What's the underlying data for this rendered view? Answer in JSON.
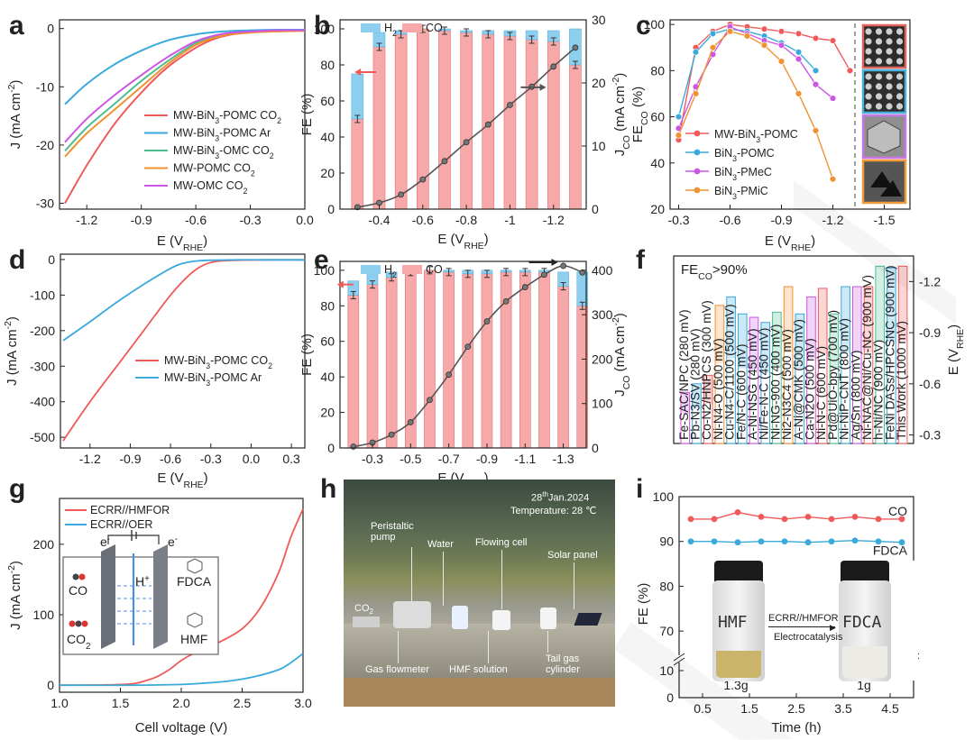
{
  "panel_labels": [
    "a",
    "b",
    "c",
    "d",
    "e",
    "f",
    "g",
    "h",
    "i"
  ],
  "colors": {
    "red": "#f05a5a",
    "blue": "#3aa9dc",
    "green": "#4dbf8f",
    "orange": "#f0922f",
    "purple": "#cc55e6",
    "grey": "#555555",
    "barred": "#f7a9a9",
    "barblue": "#8ecff0"
  },
  "chart_data": [
    {
      "panel": "a",
      "type": "line",
      "xlabel": "E (V",
      "xlabel_sub": "RHE",
      "xlabel_end": ")",
      "ylabel": "J (mA cm",
      "ylabel_sup": "-2",
      "ylabel_end": ")",
      "xlim": [
        -1.35,
        0.0
      ],
      "ylim": [
        -31,
        1.5
      ],
      "xticks": [
        "-1.2",
        "-0.9",
        "-0.6",
        "-0.3",
        "0.0"
      ],
      "xtick_values": [
        -1.2,
        -0.9,
        -0.6,
        -0.3,
        0.0
      ],
      "yticks": [
        "0",
        "-10",
        "-20",
        "-30"
      ],
      "ytick_values": [
        0,
        -10,
        -20,
        -30
      ],
      "series": [
        {
          "name": "MW-BiN3-POMC CO2",
          "legend": [
            "MW-BiN",
            "3",
            "-POMC CO",
            "2"
          ],
          "color": "red",
          "x": [
            -1.32,
            -1.2,
            -1.05,
            -0.9,
            -0.75,
            -0.6,
            -0.5,
            -0.4,
            -0.3,
            -0.2,
            0.0
          ],
          "y": [
            -30,
            -23.5,
            -16.5,
            -11,
            -6.5,
            -3.3,
            -1.8,
            -1.0,
            -0.6,
            -0.4,
            -0.3
          ]
        },
        {
          "name": "MW-BiN3-POMC Ar",
          "legend": [
            "MW-BiN",
            "3",
            "-POMC Ar",
            ""
          ],
          "color": "blue",
          "x": [
            -1.32,
            -1.2,
            -1.05,
            -0.9,
            -0.75,
            -0.6,
            -0.45,
            -0.3,
            -0.15,
            0.0
          ],
          "y": [
            -13,
            -9.5,
            -6.2,
            -3.8,
            -2.0,
            -1.0,
            -0.5,
            -0.3,
            -0.2,
            -0.2
          ]
        },
        {
          "name": "MW-BiN3-OMC CO2",
          "legend": [
            "MW-BiN",
            "3",
            "-OMC CO",
            "2"
          ],
          "color": "green",
          "x": [
            -1.32,
            -1.2,
            -1.05,
            -0.9,
            -0.75,
            -0.6,
            -0.45,
            -0.3,
            -0.15,
            0.0
          ],
          "y": [
            -21,
            -17,
            -13,
            -9,
            -5.5,
            -2.5,
            -1.0,
            -0.6,
            -0.4,
            -0.3
          ]
        },
        {
          "name": "MW-POMC CO2",
          "legend": [
            "MW-POMC CO",
            "2",
            "",
            ""
          ],
          "color": "orange",
          "x": [
            -1.32,
            -1.2,
            -1.05,
            -0.9,
            -0.75,
            -0.6,
            -0.45,
            -0.3,
            -0.15,
            0.0
          ],
          "y": [
            -22,
            -18,
            -14,
            -10,
            -6,
            -2.8,
            -1.2,
            -0.7,
            -0.5,
            -0.4
          ]
        },
        {
          "name": "MW-OMC CO2",
          "legend": [
            "MW-OMC CO",
            "2",
            "",
            ""
          ],
          "color": "purple",
          "x": [
            -1.32,
            -1.2,
            -1.05,
            -0.9,
            -0.75,
            -0.6,
            -0.45,
            -0.3,
            -0.15,
            0.0
          ],
          "y": [
            -19.5,
            -15.5,
            -11.5,
            -8,
            -4.8,
            -2.2,
            -0.9,
            -0.5,
            -0.3,
            -0.3
          ]
        }
      ]
    },
    {
      "panel": "b",
      "type": "bar+line",
      "xlabel": "E (V",
      "xlabel_sub": "RHE",
      "xlabel_end": ")",
      "ylabel": "FE (%)",
      "y2label": "J",
      "y2label_sub": "CO",
      "y2label_end": " (mA cm",
      "y2label_sup": "-2",
      "y2label_end2": ")",
      "xlim": [
        -0.22,
        -1.35
      ],
      "ylim": [
        0,
        105
      ],
      "y2lim": [
        0,
        30
      ],
      "xticks": [
        "-0.4",
        "-0.6",
        "-0.8",
        "-1",
        "-1.2"
      ],
      "xtick_values": [
        -0.4,
        -0.6,
        -0.8,
        -1.0,
        -1.2
      ],
      "yticks": [
        "0",
        "20",
        "40",
        "60",
        "80",
        "100"
      ],
      "ytick_values": [
        0,
        20,
        40,
        60,
        80,
        100
      ],
      "y2ticks": [
        "0",
        "10",
        "20",
        "30"
      ],
      "y2tick_values": [
        0,
        10,
        20,
        30
      ],
      "legend": [
        "H",
        "2",
        "CO"
      ],
      "x": [
        -0.3,
        -0.4,
        -0.5,
        -0.6,
        -0.7,
        -0.8,
        -0.9,
        -1.0,
        -1.1,
        -1.2,
        -1.3
      ],
      "fe_co": [
        50,
        90,
        97,
        100,
        99,
        98,
        97,
        96,
        94,
        93,
        80
      ],
      "fe_h2": [
        25,
        8,
        2,
        0,
        1,
        1,
        2,
        3,
        5,
        6,
        20
      ],
      "j_co": [
        0.3,
        1.0,
        2.3,
        4.7,
        7.6,
        10.6,
        13.4,
        16.5,
        19.4,
        22.6,
        25.6
      ]
    },
    {
      "panel": "c",
      "type": "line",
      "xlabel": "E (V",
      "xlabel_sub": "RHE",
      "xlabel_end": ")",
      "ylabel": "FE",
      "ylabel_sub": "CO",
      "ylabel_end": " (%)",
      "xlim": [
        -0.25,
        -1.65
      ],
      "ylim": [
        20,
        102
      ],
      "xticks": [
        "-0.3",
        "-0.6",
        "-0.9",
        "-1.2",
        "-1.5"
      ],
      "xtick_values": [
        -0.3,
        -0.6,
        -0.9,
        -1.2,
        -1.5
      ],
      "yticks": [
        "20",
        "40",
        "60",
        "80",
        "100"
      ],
      "ytick_values": [
        20,
        40,
        60,
        80,
        100
      ],
      "series": [
        {
          "name": "MW-BiN3-POMC",
          "legend": [
            "MW-BiN",
            "3",
            "-POMC"
          ],
          "color": "red",
          "x": [
            -0.3,
            -0.4,
            -0.5,
            -0.6,
            -0.7,
            -0.8,
            -0.9,
            -1.0,
            -1.1,
            -1.2,
            -1.3
          ],
          "y": [
            50,
            90,
            97,
            100,
            99,
            98,
            97,
            96,
            94,
            93,
            80
          ]
        },
        {
          "name": "BiN3-POMC",
          "legend": [
            "BiN",
            "3",
            "-POMC"
          ],
          "color": "blue",
          "x": [
            -0.3,
            -0.4,
            -0.5,
            -0.6,
            -0.7,
            -0.8,
            -0.9,
            -1.0,
            -1.1
          ],
          "y": [
            60,
            88,
            96,
            98,
            97,
            95,
            92,
            88,
            80
          ]
        },
        {
          "name": "BiN3-PMeC",
          "legend": [
            "BiN",
            "3",
            "-PMeC"
          ],
          "color": "purple",
          "x": [
            -0.3,
            -0.4,
            -0.5,
            -0.6,
            -0.7,
            -0.8,
            -0.9,
            -1.0,
            -1.1,
            -1.2
          ],
          "y": [
            55,
            73,
            87,
            99,
            96,
            93,
            91,
            85,
            74,
            68
          ]
        },
        {
          "name": "BiN3-PMiC",
          "legend": [
            "BiN",
            "3",
            "-PMiC"
          ],
          "color": "orange",
          "x": [
            -0.3,
            -0.4,
            -0.5,
            -0.6,
            -0.7,
            -0.8,
            -0.9,
            -1.0,
            -1.1,
            -1.2
          ],
          "y": [
            52,
            70,
            90,
            97,
            95,
            91,
            84,
            70,
            54,
            33
          ]
        }
      ]
    },
    {
      "panel": "d",
      "type": "line",
      "xlabel": "E (V",
      "xlabel_sub": "RHE",
      "xlabel_end": ")",
      "ylabel": "J (mA cm",
      "ylabel_sup": "-2",
      "ylabel_end": ")",
      "xlim": [
        -1.42,
        0.4
      ],
      "ylim": [
        -530,
        15
      ],
      "xticks": [
        "-1.2",
        "-0.9",
        "-0.6",
        "-0.3",
        "0.0",
        "0.3"
      ],
      "xtick_values": [
        -1.2,
        -0.9,
        -0.6,
        -0.3,
        0.0,
        0.3
      ],
      "yticks": [
        "0",
        "-100",
        "-200",
        "-300",
        "-400",
        "-500"
      ],
      "ytick_values": [
        0,
        -100,
        -200,
        -300,
        -400,
        -500
      ],
      "series": [
        {
          "name": "MW-BiN3-POMC CO2",
          "legend": [
            "MW-BiN",
            "3",
            "-POMC CO",
            "2"
          ],
          "color": "red",
          "x": [
            -1.4,
            -1.2,
            -1.0,
            -0.8,
            -0.6,
            -0.45,
            -0.35,
            -0.25,
            -0.1,
            0.1,
            0.4
          ],
          "y": [
            -510,
            -400,
            -300,
            -200,
            -100,
            -40,
            -15,
            -5,
            -2,
            -1,
            -1
          ]
        },
        {
          "name": "MW-BiN3-POMC Ar",
          "legend": [
            "MW-BiN",
            "3",
            "-POMC Ar",
            ""
          ],
          "color": "blue",
          "x": [
            -1.4,
            -1.2,
            -1.0,
            -0.8,
            -0.6,
            -0.5,
            -0.4,
            -0.3,
            -0.1,
            0.1,
            0.4
          ],
          "y": [
            -228,
            -175,
            -120,
            -70,
            -25,
            -10,
            -4,
            -2,
            -1,
            -1,
            -1
          ]
        }
      ]
    },
    {
      "panel": "e",
      "type": "bar+line",
      "xlabel": "E (V",
      "xlabel_sub": "RHE",
      "xlabel_end": ")",
      "ylabel": "FE (%)",
      "y2label": "J",
      "y2label_sub": "CO",
      "y2label_end": " (mA cm",
      "y2label_sup": "-2",
      "y2label_end2": ")",
      "xlim": [
        -0.13,
        -1.42
      ],
      "ylim": [
        0,
        105
      ],
      "y2lim": [
        0,
        420
      ],
      "xticks": [
        "-0.3",
        "-0.5",
        "-0.7",
        "-0.9",
        "-1.1",
        "-1.3"
      ],
      "xtick_values": [
        -0.3,
        -0.5,
        -0.7,
        -0.9,
        -1.1,
        -1.3
      ],
      "yticks": [
        "0",
        "20",
        "40",
        "60",
        "80",
        "100"
      ],
      "ytick_values": [
        0,
        20,
        40,
        60,
        80,
        100
      ],
      "y2ticks": [
        "0",
        "100",
        "200",
        "300",
        "400"
      ],
      "y2tick_values": [
        0,
        100,
        200,
        300,
        400
      ],
      "legend": [
        "H",
        "2",
        "CO"
      ],
      "x": [
        -0.2,
        -0.3,
        -0.4,
        -0.5,
        -0.6,
        -0.7,
        -0.8,
        -0.9,
        -1.0,
        -1.1,
        -1.2,
        -1.3,
        -1.4
      ],
      "fe_co": [
        86,
        92,
        96,
        99,
        100,
        99,
        98,
        98,
        99,
        99,
        99,
        91,
        80
      ],
      "fe_h2": [
        8,
        6,
        3,
        1,
        0,
        1,
        2,
        2,
        1,
        1,
        1,
        8,
        19
      ],
      "j_co": [
        3,
        12,
        30,
        58,
        108,
        165,
        228,
        285,
        330,
        362,
        390,
        410,
        395
      ]
    },
    {
      "panel": "f",
      "type": "bar",
      "annotation_main": "FE",
      "annotation_sub": "CO",
      "annotation_end": ">90%",
      "y2label": "E (V",
      "y2label_sub": "RHE",
      "y2label_end": ")",
      "ylim": [
        -0.25,
        -1.35
      ],
      "yticks": [
        "-1.2",
        "-0.9",
        "-0.6",
        "-0.3"
      ],
      "ytick_values": [
        -1.2,
        -0.9,
        -0.6,
        -0.3
      ],
      "categories": [
        "Fe-SAC/NPC (280 mV)",
        "Pb-N3/SV (280 mV)",
        "Co-N2/HNPCS (300 mV)",
        "Ni-N4-O (500 mV)",
        "Cu-N4-C/1100 (500 mV)",
        "Fe/N-C (600 mV)",
        "A-Ni-NSG (450 mV)",
        "Ni/Fe-N-C (450 mV)",
        "Ni-NG-900 (400 mV)",
        "Ni2-N3C4 (500 mV)",
        "A-Ni@CMK (500 mV)",
        "Ca-N2O (500 mV)",
        "Ni-N-C (600 mV)",
        "Pd@UiO-bpy (700 mV)",
        "Ni-NiP-CNT (800 mV)",
        "Ag/Sn (800 mV)",
        "Ni-NAC@Ni/Cu-NC (900 mV)",
        "h-Ni/NC (900 mV)",
        "FeNi DASs/HPCSNC (900 mV)",
        "This Work (1000 mV)"
      ],
      "values": [
        -0.55,
        -0.6,
        -0.65,
        -1.06,
        -1.11,
        -1.01,
        -0.99,
        -0.96,
        -1.02,
        -1.17,
        -1.01,
        -1.11,
        -1.16,
        -1.01,
        -1.17,
        -1.17,
        -1.17,
        -1.29,
        -1.28,
        -1.29
      ],
      "bar_colors": [
        "purple",
        "blue",
        "red",
        "orange",
        "blue",
        "blue",
        "purple",
        "blue",
        "green",
        "orange",
        "blue",
        "purple",
        "red",
        "green",
        "blue",
        "purple",
        "red",
        "green",
        "blue",
        "red"
      ]
    },
    {
      "panel": "g",
      "type": "line",
      "xlabel": "Cell voltage (V)",
      "ylabel": "J (mA cm",
      "ylabel_sup": "-2",
      "ylabel_end": ")",
      "xlim": [
        1.0,
        3.0
      ],
      "ylim": [
        -10,
        265
      ],
      "xticks": [
        "1.0",
        "1.5",
        "2.0",
        "2.5",
        "3.0"
      ],
      "xtick_values": [
        1.0,
        1.5,
        2.0,
        2.5,
        3.0
      ],
      "yticks": [
        "0",
        "100",
        "200"
      ],
      "ytick_values": [
        0,
        100,
        200
      ],
      "series": [
        {
          "name": "ECRR//HMFOR",
          "color": "red",
          "x": [
            1.0,
            1.4,
            1.6,
            1.7,
            1.8,
            1.9,
            2.0,
            2.1,
            2.3,
            2.5,
            2.65,
            2.8,
            2.9,
            3.0
          ],
          "y": [
            0,
            0.5,
            2,
            6,
            12,
            22,
            35,
            45,
            60,
            80,
            110,
            160,
            210,
            250
          ]
        },
        {
          "name": "ECRR//OER",
          "color": "blue",
          "x": [
            1.0,
            1.6,
            2.0,
            2.2,
            2.4,
            2.6,
            2.8,
            2.9,
            3.0
          ],
          "y": [
            0,
            0,
            1,
            3,
            6,
            12,
            22,
            32,
            45
          ]
        }
      ],
      "inset_labels": {
        "co": "CO",
        "co2_main": "CO",
        "co2_sub": "2",
        "hplus": "H",
        "hplus_sup": "+",
        "fdca": "FDCA",
        "hmf": "HMF",
        "e_left": "e",
        "e_right": "e",
        "e_minus": "-"
      }
    },
    {
      "panel": "i",
      "type": "line",
      "xlabel": "Time (h)",
      "ylabel": "FE (%)",
      "xlim": [
        0,
        5
      ],
      "ylim_top": [
        65,
        100
      ],
      "ylim_bottom": [
        0,
        12
      ],
      "xticks": [
        "0.5",
        "1.5",
        "2.5",
        "3.5",
        "4.5"
      ],
      "xtick_values": [
        0.5,
        1.5,
        2.5,
        3.5,
        4.5
      ],
      "yticks_top": [
        "70",
        "80",
        "90",
        "100"
      ],
      "yticks_top_values": [
        70,
        80,
        90,
        100
      ],
      "yticks_bottom": [
        "0",
        "10"
      ],
      "yticks_bottom_values": [
        0,
        10
      ],
      "series": [
        {
          "name": "CO",
          "color": "red",
          "x": [
            0.25,
            0.75,
            1.25,
            1.75,
            2.25,
            2.75,
            3.25,
            3.75,
            4.25,
            4.75
          ],
          "y": [
            95,
            95,
            96.5,
            95.5,
            95,
            95.5,
            95,
            95.5,
            95,
            95
          ]
        },
        {
          "name": "FDCA",
          "color": "blue",
          "x": [
            0.25,
            0.75,
            1.25,
            1.75,
            2.25,
            2.75,
            3.25,
            3.75,
            4.25,
            4.75
          ],
          "y": [
            90,
            90,
            89.8,
            90,
            90,
            89.8,
            90,
            90.2,
            90,
            89.8
          ]
        }
      ],
      "photo_labels": {
        "left_bottle": "HMF",
        "right_bottle": "FDCA",
        "left_mass": "1.3g",
        "right_mass": "1g",
        "arrow_top": "ECRR//HMFOR",
        "arrow_bottom": "Electrocatalysis"
      }
    }
  ],
  "photo_h": {
    "date": "28",
    "date_sup": "th",
    "date_rest": "Jan.2024",
    "temperature": "Temperature: 28 ℃",
    "labels": [
      "Peristaltic pump",
      "Water",
      "Flowing cell",
      "Solar panel",
      "CO2",
      "Gas flowmeter",
      "HMF solution",
      "Tail gas cylinder"
    ],
    "co2_main": "CO",
    "co2_sub": "2",
    "peristaltic_1": "Peristaltic",
    "peristaltic_2": "pump",
    "tail_1": "Tail gas",
    "tail_2": "cylinder"
  }
}
